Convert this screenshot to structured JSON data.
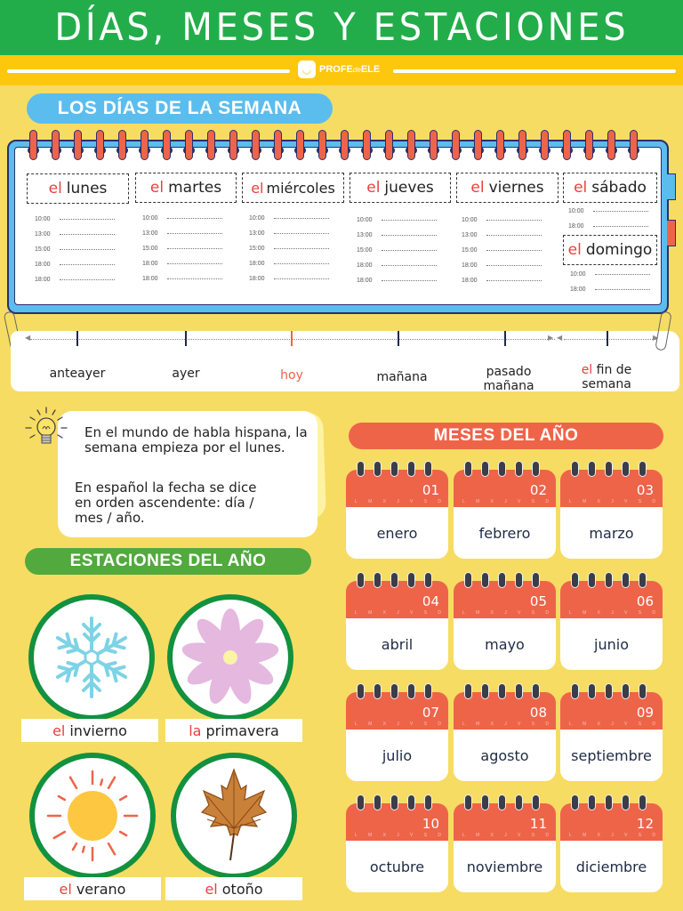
{
  "header": {
    "title": "DÍAS, MESES Y ESTACIONES",
    "brand": {
      "name_main": "PROFE",
      "name_small": "de",
      "name_end": "ELE",
      "icon": "smile-icon"
    }
  },
  "colors": {
    "title_green": "#23ad4a",
    "brand_yellow": "#fdc70e",
    "background": "#f7dc63",
    "blue": "#5bbdee",
    "orange": "#ee6449",
    "green_pill": "#52a93e",
    "article_red": "#e8413f"
  },
  "week_section": {
    "heading": "LOS DÍAS DE LA SEMANA",
    "days": [
      {
        "article": "el",
        "name": "lunes",
        "times": [
          "10:00",
          "13:00",
          "15:00",
          "18:00",
          "18:00"
        ]
      },
      {
        "article": "el",
        "name": "martes",
        "times": [
          "10:00",
          "13:00",
          "15:00",
          "18:00",
          "18:00"
        ]
      },
      {
        "article": "el",
        "name": "miércoles",
        "times": [
          "10:00",
          "13:00",
          "15:00",
          "18:00",
          "18:00"
        ]
      },
      {
        "article": "el",
        "name": "jueves",
        "times": [
          "10:00",
          "13:00",
          "15:00",
          "18:00",
          "18:00"
        ]
      },
      {
        "article": "el",
        "name": "viernes",
        "times": [
          "10:00",
          "13:00",
          "15:00",
          "18:00",
          "18:00"
        ]
      },
      {
        "article": "el",
        "name": "sábado",
        "times": [
          "10:00",
          "18:00"
        ]
      },
      {
        "article": "el",
        "name": "domingo",
        "times": [
          "10:00",
          "18:00"
        ]
      }
    ],
    "timeline": [
      {
        "label": "anteayer"
      },
      {
        "label": "ayer"
      },
      {
        "label": "hoy",
        "highlight": true
      },
      {
        "label": "mañana"
      },
      {
        "label_line1": "pasado",
        "label_line2": "mañana"
      },
      {
        "article": "el",
        "label_line1": "fin de",
        "label_line2": "semana"
      }
    ]
  },
  "note": {
    "icon": "lightbulb-icon",
    "paragraph1": "En el mundo de habla hispana, la semana empieza por el lunes.",
    "paragraph2": "En español la fecha se dice en orden ascendente: día / mes / año."
  },
  "seasons_section": {
    "heading": "ESTACIONES DEL AÑO",
    "seasons": [
      {
        "article": "el",
        "name": "invierno",
        "icon": "snowflake-icon"
      },
      {
        "article": "la",
        "name": "primavera",
        "icon": "flower-icon"
      },
      {
        "article": "el",
        "name": "verano",
        "icon": "sun-icon"
      },
      {
        "article": "el",
        "name": "otoño",
        "icon": "leaf-icon"
      }
    ]
  },
  "months_section": {
    "heading": "MESES DEL AÑO",
    "weekday_initials": [
      "L",
      "M",
      "X",
      "J",
      "V",
      "S",
      "D"
    ],
    "months": [
      {
        "num": "01",
        "name": "enero"
      },
      {
        "num": "02",
        "name": "febrero"
      },
      {
        "num": "03",
        "name": "marzo"
      },
      {
        "num": "04",
        "name": "abril"
      },
      {
        "num": "05",
        "name": "mayo"
      },
      {
        "num": "06",
        "name": "junio"
      },
      {
        "num": "07",
        "name": "julio"
      },
      {
        "num": "08",
        "name": "agosto"
      },
      {
        "num": "09",
        "name": "septiembre"
      },
      {
        "num": "10",
        "name": "octubre"
      },
      {
        "num": "11",
        "name": "noviembre"
      },
      {
        "num": "12",
        "name": "diciembre"
      }
    ]
  }
}
